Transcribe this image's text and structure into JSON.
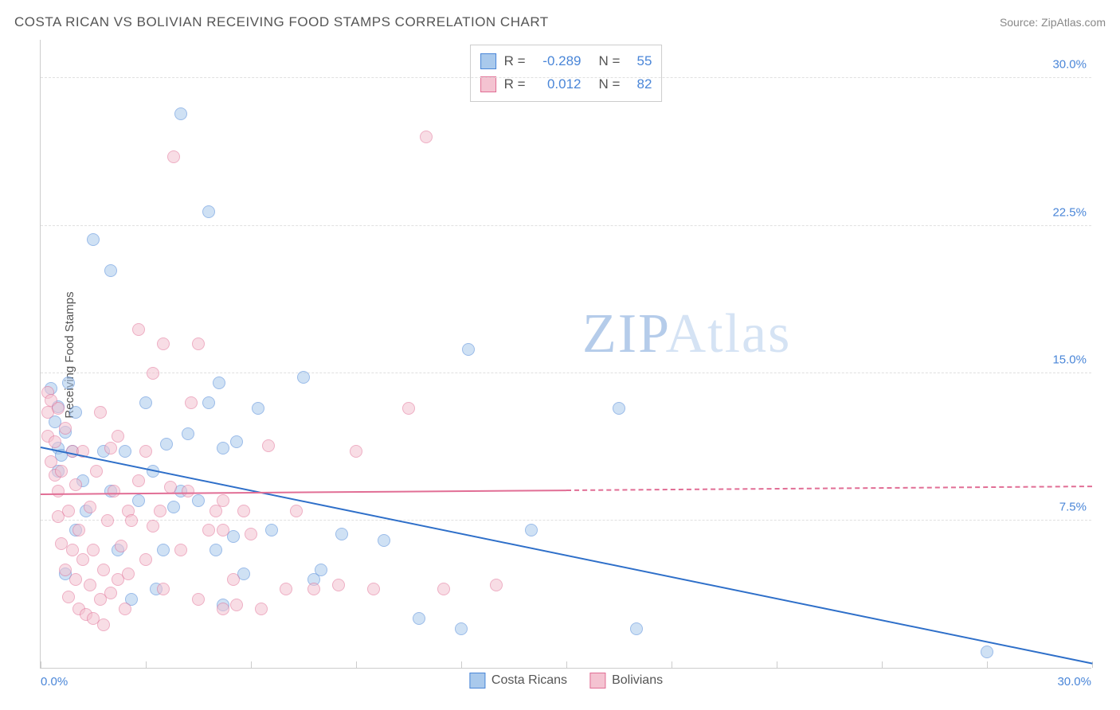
{
  "title": "COSTA RICAN VS BOLIVIAN RECEIVING FOOD STAMPS CORRELATION CHART",
  "source_label": "Source: ",
  "source_name": "ZipAtlas.com",
  "ylabel": "Receiving Food Stamps",
  "watermark_a": "ZIP",
  "watermark_b": "Atlas",
  "chart": {
    "type": "scatter",
    "xlim": [
      0,
      30
    ],
    "ylim": [
      0,
      32
    ],
    "xlabel_min": "0.0%",
    "xlabel_max": "30.0%",
    "xtick_positions": [
      0,
      3,
      6,
      9,
      12,
      15,
      18,
      21,
      24,
      27,
      30
    ],
    "yticks": [
      {
        "v": 7.5,
        "label": "7.5%"
      },
      {
        "v": 15.0,
        "label": "15.0%"
      },
      {
        "v": 22.5,
        "label": "22.5%"
      },
      {
        "v": 30.0,
        "label": "30.0%"
      }
    ],
    "background_color": "#ffffff",
    "grid_color": "#e0e0e0",
    "marker_radius": 8,
    "marker_opacity": 0.55,
    "series": [
      {
        "name": "Costa Ricans",
        "fill": "#a9c9ec",
        "stroke": "#4a86d8",
        "line_color": "#2e6fc9",
        "R": "-0.289",
        "N": "55",
        "trend_from": {
          "x": 0,
          "y": 11.2
        },
        "trend_to": {
          "x": 30,
          "y": 0.2
        },
        "trend_solid_until_x": 30,
        "points": [
          [
            0.3,
            14.2
          ],
          [
            0.4,
            12.5
          ],
          [
            0.5,
            11.2
          ],
          [
            0.5,
            13.3
          ],
          [
            0.6,
            10.8
          ],
          [
            0.7,
            12.0
          ],
          [
            0.8,
            14.5
          ],
          [
            0.5,
            10.0
          ],
          [
            0.9,
            11.0
          ],
          [
            0.7,
            4.8
          ],
          [
            1.0,
            13.0
          ],
          [
            1.0,
            7.0
          ],
          [
            1.2,
            9.5
          ],
          [
            1.3,
            8.0
          ],
          [
            1.5,
            21.8
          ],
          [
            1.8,
            11.0
          ],
          [
            2.0,
            20.2
          ],
          [
            2.0,
            9.0
          ],
          [
            2.2,
            6.0
          ],
          [
            2.4,
            11.0
          ],
          [
            2.6,
            3.5
          ],
          [
            2.8,
            8.5
          ],
          [
            3.0,
            13.5
          ],
          [
            3.2,
            10.0
          ],
          [
            3.3,
            4.0
          ],
          [
            3.5,
            6.0
          ],
          [
            3.6,
            11.4
          ],
          [
            3.8,
            8.2
          ],
          [
            4.0,
            28.2
          ],
          [
            4.0,
            9.0
          ],
          [
            4.2,
            11.9
          ],
          [
            4.5,
            8.5
          ],
          [
            4.8,
            13.5
          ],
          [
            4.8,
            23.2
          ],
          [
            5.0,
            6.0
          ],
          [
            5.1,
            14.5
          ],
          [
            5.2,
            11.2
          ],
          [
            5.2,
            3.2
          ],
          [
            5.5,
            6.7
          ],
          [
            5.6,
            11.5
          ],
          [
            5.8,
            4.8
          ],
          [
            6.2,
            13.2
          ],
          [
            6.6,
            7.0
          ],
          [
            7.5,
            14.8
          ],
          [
            7.8,
            4.5
          ],
          [
            8.0,
            5.0
          ],
          [
            8.6,
            6.8
          ],
          [
            9.8,
            6.5
          ],
          [
            10.8,
            2.5
          ],
          [
            12.0,
            2.0
          ],
          [
            12.2,
            16.2
          ],
          [
            14.0,
            7.0
          ],
          [
            16.5,
            13.2
          ],
          [
            17.0,
            2.0
          ],
          [
            27.0,
            0.8
          ]
        ]
      },
      {
        "name": "Bolivians",
        "fill": "#f4c3d1",
        "stroke": "#e16e95",
        "line_color": "#e16e95",
        "R": "0.012",
        "N": "82",
        "trend_from": {
          "x": 0,
          "y": 8.8
        },
        "trend_to": {
          "x": 30,
          "y": 9.2
        },
        "trend_solid_until_x": 15,
        "points": [
          [
            0.2,
            14.0
          ],
          [
            0.2,
            13.0
          ],
          [
            0.2,
            11.8
          ],
          [
            0.3,
            13.6
          ],
          [
            0.3,
            10.5
          ],
          [
            0.4,
            11.5
          ],
          [
            0.4,
            9.8
          ],
          [
            0.5,
            13.2
          ],
          [
            0.5,
            9.0
          ],
          [
            0.5,
            7.7
          ],
          [
            0.6,
            10.0
          ],
          [
            0.6,
            6.3
          ],
          [
            0.7,
            12.2
          ],
          [
            0.7,
            5.0
          ],
          [
            0.8,
            3.6
          ],
          [
            0.8,
            8.0
          ],
          [
            0.9,
            11.0
          ],
          [
            0.9,
            6.0
          ],
          [
            1.0,
            4.5
          ],
          [
            1.0,
            9.3
          ],
          [
            1.1,
            7.0
          ],
          [
            1.1,
            3.0
          ],
          [
            1.2,
            5.5
          ],
          [
            1.2,
            11.0
          ],
          [
            1.3,
            2.7
          ],
          [
            1.4,
            8.2
          ],
          [
            1.4,
            4.2
          ],
          [
            1.5,
            6.0
          ],
          [
            1.5,
            2.5
          ],
          [
            1.6,
            10.0
          ],
          [
            1.7,
            3.5
          ],
          [
            1.7,
            13.0
          ],
          [
            1.8,
            5.0
          ],
          [
            1.8,
            2.2
          ],
          [
            1.9,
            7.5
          ],
          [
            2.0,
            11.2
          ],
          [
            2.0,
            3.8
          ],
          [
            2.1,
            9.0
          ],
          [
            2.2,
            4.5
          ],
          [
            2.2,
            11.8
          ],
          [
            2.3,
            6.2
          ],
          [
            2.4,
            3.0
          ],
          [
            2.5,
            8.0
          ],
          [
            2.5,
            4.8
          ],
          [
            2.6,
            7.5
          ],
          [
            2.8,
            17.2
          ],
          [
            2.8,
            9.5
          ],
          [
            3.0,
            5.5
          ],
          [
            3.0,
            11.0
          ],
          [
            3.2,
            15.0
          ],
          [
            3.2,
            7.2
          ],
          [
            3.4,
            8.0
          ],
          [
            3.5,
            16.5
          ],
          [
            3.5,
            4.0
          ],
          [
            3.7,
            9.2
          ],
          [
            3.8,
            26.0
          ],
          [
            4.0,
            6.0
          ],
          [
            4.2,
            9.0
          ],
          [
            4.3,
            13.5
          ],
          [
            4.5,
            16.5
          ],
          [
            4.5,
            3.5
          ],
          [
            4.8,
            7.0
          ],
          [
            5.0,
            8.0
          ],
          [
            5.2,
            3.0
          ],
          [
            5.2,
            8.5
          ],
          [
            5.2,
            7.0
          ],
          [
            5.5,
            4.5
          ],
          [
            5.6,
            3.2
          ],
          [
            5.8,
            8.0
          ],
          [
            6.0,
            6.8
          ],
          [
            6.3,
            3.0
          ],
          [
            6.5,
            11.3
          ],
          [
            7.0,
            4.0
          ],
          [
            7.3,
            8.0
          ],
          [
            7.8,
            4.0
          ],
          [
            8.5,
            4.2
          ],
          [
            9.0,
            11.0
          ],
          [
            9.5,
            4.0
          ],
          [
            10.5,
            13.2
          ],
          [
            11.0,
            27.0
          ],
          [
            11.5,
            4.0
          ],
          [
            13.0,
            4.2
          ]
        ]
      }
    ]
  }
}
